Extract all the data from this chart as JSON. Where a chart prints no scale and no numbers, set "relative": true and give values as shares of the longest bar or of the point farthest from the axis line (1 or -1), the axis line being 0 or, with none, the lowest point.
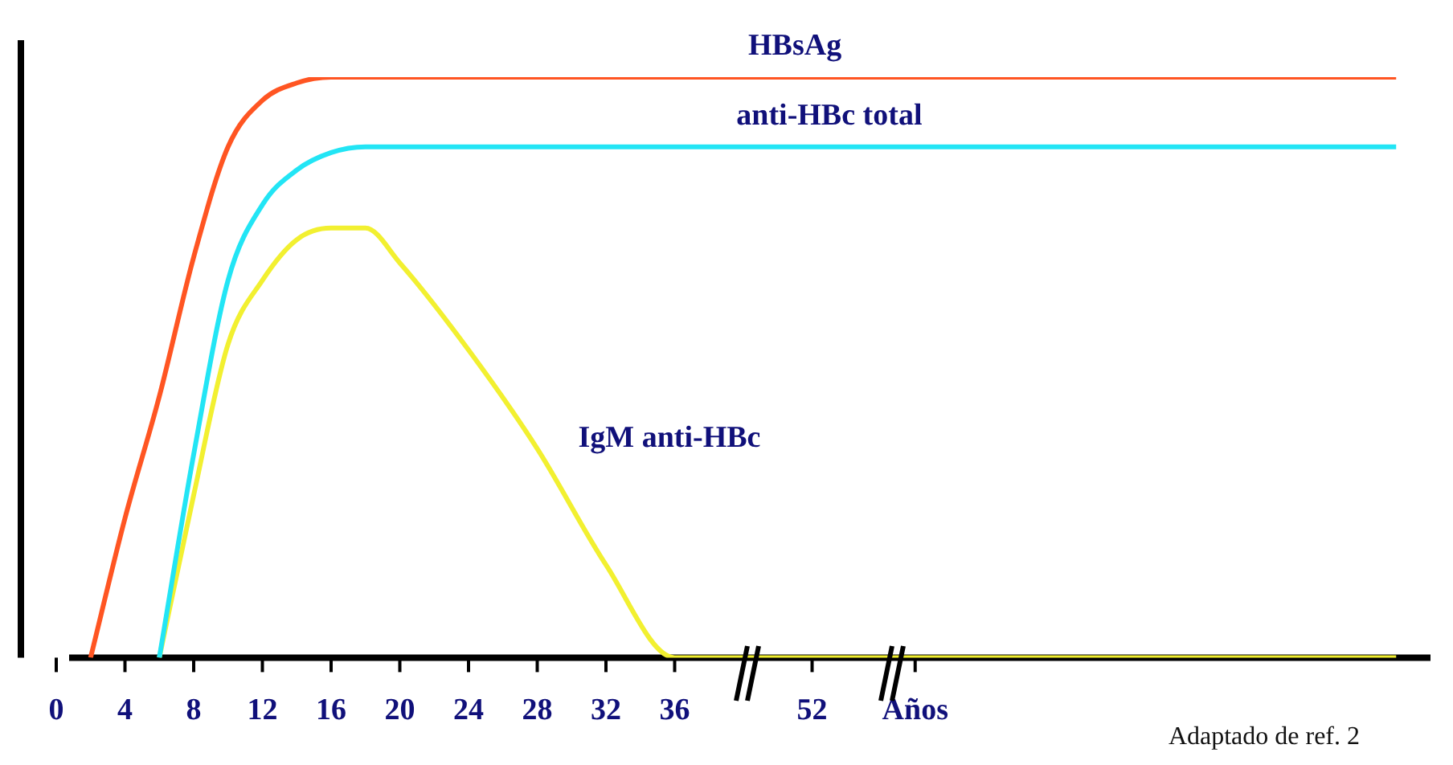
{
  "chart_data": {
    "type": "line",
    "relative": true,
    "marker": "none",
    "categories": [
      "0",
      null,
      null,
      null,
      "4",
      null,
      null,
      null,
      "8",
      null,
      null,
      null,
      "12",
      null,
      null,
      null,
      "16",
      null,
      null,
      null,
      "20",
      null,
      null,
      null,
      "24",
      null,
      null,
      null,
      "28",
      null,
      null,
      null,
      "32",
      null,
      null,
      null,
      "36",
      null,
      null,
      null,
      null,
      null,
      null,
      null,
      "52",
      null,
      null,
      null,
      null,
      null,
      "Años",
      null,
      null,
      null,
      null,
      null,
      null,
      null,
      null,
      null,
      null,
      null,
      null,
      null,
      null,
      null,
      null,
      null,
      null,
      null,
      null,
      null,
      null,
      null,
      null,
      null,
      null,
      null,
      null,
      null,
      null
    ],
    "series": [
      {
        "name": "HBsAg",
        "color": "#ff5522",
        "values": [
          null,
          null,
          0,
          null,
          0.24,
          null,
          0.45,
          null,
          0.69,
          null,
          0.88,
          null,
          0.96,
          null,
          0.99,
          null,
          1,
          null,
          null,
          null,
          null,
          null,
          null,
          null,
          null,
          null,
          null,
          null,
          null,
          null,
          null,
          null,
          null,
          null,
          null,
          null,
          null,
          null,
          null,
          null,
          null,
          null,
          null,
          null,
          null,
          null,
          null,
          null,
          null,
          null,
          null,
          null,
          null,
          null,
          null,
          null,
          null,
          null,
          null,
          null,
          null,
          null,
          null,
          null,
          null,
          null,
          null,
          null,
          null,
          null,
          null,
          null,
          null,
          null,
          null,
          null,
          null,
          null,
          1,
          null,
          null
        ]
      },
      {
        "name": "anti-HBc total",
        "color": "#22e5f5",
        "values": [
          null,
          null,
          null,
          null,
          null,
          null,
          0,
          null,
          0.35,
          null,
          0.65,
          null,
          0.78,
          null,
          0.84,
          null,
          0.87,
          null,
          0.88,
          null,
          null,
          null,
          null,
          null,
          null,
          null,
          null,
          null,
          null,
          null,
          null,
          null,
          null,
          null,
          null,
          null,
          null,
          null,
          null,
          null,
          null,
          null,
          null,
          null,
          null,
          null,
          null,
          null,
          null,
          null,
          null,
          null,
          null,
          null,
          null,
          null,
          null,
          null,
          null,
          null,
          null,
          null,
          null,
          null,
          null,
          null,
          null,
          null,
          null,
          null,
          null,
          null,
          null,
          null,
          null,
          null,
          null,
          null,
          0.88,
          null,
          null
        ]
      },
      {
        "name": "IgM anti-HBc",
        "color": "#f2f030",
        "values": [
          null,
          null,
          null,
          null,
          null,
          null,
          0,
          null,
          0.28,
          null,
          0.54,
          null,
          0.65,
          null,
          0.72,
          null,
          0.74,
          null,
          0.74,
          null,
          0.68,
          null,
          null,
          null,
          0.53,
          null,
          null,
          null,
          0.36,
          null,
          null,
          null,
          0.16,
          null,
          null,
          null,
          0,
          null,
          null,
          null,
          null,
          null,
          null,
          null,
          null,
          null,
          null,
          null,
          null,
          null,
          null,
          null,
          null,
          null,
          null,
          null,
          null,
          null,
          null,
          null,
          null,
          null,
          null,
          null,
          null,
          null,
          null,
          null,
          null,
          null,
          null,
          null,
          null,
          null,
          null,
          null,
          null,
          null,
          0,
          null,
          null
        ]
      }
    ],
    "annotations": [
      "Adaptado de ref. 2"
    ]
  }
}
